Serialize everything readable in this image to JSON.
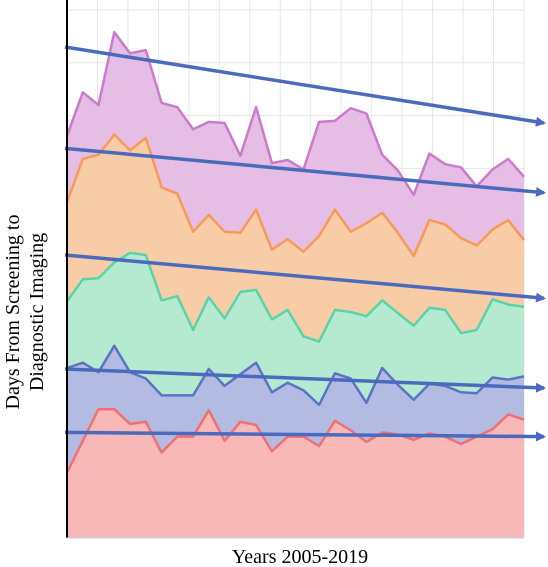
{
  "chart_data": {
    "type": "area",
    "stacked": true,
    "xlabel": "Years 2005-2019",
    "ylabel_lines": [
      "Days From Screening to",
      "Diagnostic Imaging"
    ],
    "grid": true,
    "legend": "none",
    "x": [
      1,
      2,
      3,
      4,
      5,
      6,
      7,
      8,
      9,
      10,
      11,
      12,
      13,
      14,
      15,
      16,
      17,
      18,
      19,
      20,
      21,
      22,
      23,
      24,
      25,
      26,
      27,
      28,
      29,
      30
    ],
    "ylim": [
      0,
      500
    ],
    "series": [
      {
        "color": "#f8b8b8",
        "line_color": "#f07070",
        "values": [
          62,
          92,
          122,
          122,
          108,
          110,
          81,
          96,
          96,
          121,
          92,
          110,
          107,
          82,
          96,
          96,
          87,
          111,
          102,
          91,
          100,
          98,
          93,
          99,
          96,
          89,
          96,
          103,
          117,
          112
        ],
        "trend": [
          100,
          96
        ]
      },
      {
        "color": "#b3bbe3",
        "line_color": "#5a74c4",
        "values": [
          99,
          74,
          35,
          60,
          49,
          41,
          54,
          39,
          39,
          39,
          52,
          45,
          59,
          56,
          51,
          44,
          39,
          45,
          49,
          37,
          61,
          47,
          38,
          47,
          48,
          49,
          41,
          49,
          33,
          41
        ],
        "trend": [
          60,
          46
        ]
      },
      {
        "color": "#b6ead0",
        "line_color": "#58d4a8",
        "values": [
          63,
          79,
          89,
          79,
          113,
          117,
          90,
          94,
          62,
          68,
          64,
          78,
          69,
          69,
          69,
          51,
          60,
          60,
          63,
          82,
          64,
          68,
          70,
          72,
          72,
          56,
          60,
          74,
          71,
          66
        ],
        "trend": [
          108,
          85
        ]
      },
      {
        "color": "#f9cca8",
        "line_color": "#f79a55",
        "values": [
          94,
          114,
          117,
          121,
          97,
          111,
          107,
          97,
          93,
          78,
          82,
          56,
          76,
          66,
          67,
          80,
          100,
          95,
          76,
          88,
          83,
          76,
          66,
          83,
          81,
          90,
          80,
          66,
          80,
          63
        ],
        "trend": [
          101,
          100
        ]
      },
      {
        "color": "#e6bde5",
        "line_color": "#cc7acc",
        "values": [
          63,
          63,
          47,
          97,
          92,
          83,
          80,
          82,
          97,
          88,
          103,
          73,
          97,
          82,
          75,
          78,
          108,
          84,
          117,
          104,
          55,
          59,
          58,
          63,
          57,
          67,
          56,
          57,
          58,
          60
        ],
        "trend": [
          96,
          66
        ]
      }
    ]
  }
}
